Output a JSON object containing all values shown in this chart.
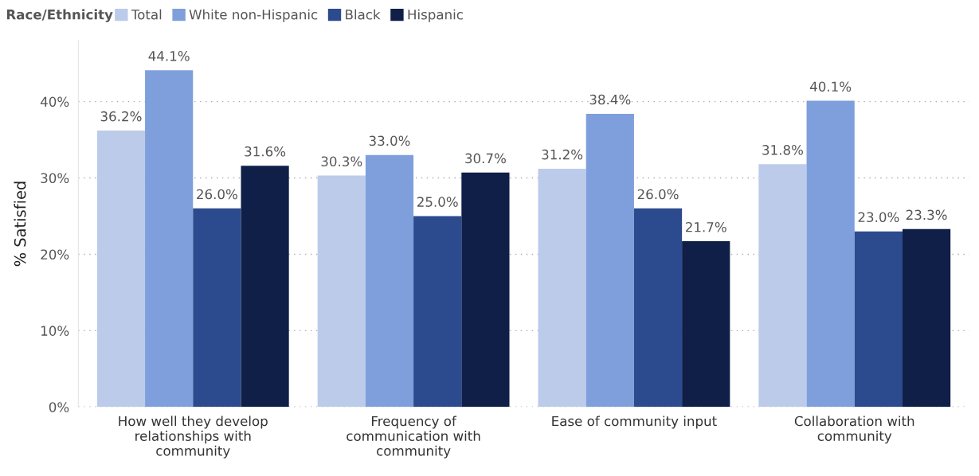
{
  "chart_data": {
    "type": "bar",
    "ylabel": "% Satisfied",
    "legend_title": "Race/Ethnicity",
    "legend": "top left",
    "categories": [
      "How well they develop\nrelationships with\ncommunity",
      "Frequency of\ncommunication with\ncommunity",
      "Ease of community input",
      "Collaboration with\ncommunity"
    ],
    "series": [
      {
        "name": "Total",
        "color": "#bccbea",
        "values": [
          36.2,
          30.3,
          31.2,
          31.8
        ],
        "value_labels": [
          "36.2%",
          "30.3%",
          "31.2%",
          "31.8%"
        ]
      },
      {
        "name": "White non-Hispanic",
        "color": "#7f9fdc",
        "values": [
          44.1,
          33.0,
          38.4,
          40.1
        ],
        "value_labels": [
          "44.1%",
          "33.0%",
          "38.4%",
          "40.1%"
        ]
      },
      {
        "name": "Black",
        "color": "#2c4a8e",
        "values": [
          26.0,
          25.0,
          26.0,
          23.0
        ],
        "value_labels": [
          "26.0%",
          "25.0%",
          "26.0%",
          "23.0%"
        ]
      },
      {
        "name": "Hispanic",
        "color": "#0f1f47",
        "values": [
          31.6,
          30.7,
          21.7,
          23.3
        ],
        "value_labels": [
          "31.6%",
          "30.7%",
          "21.7%",
          "23.3%"
        ]
      }
    ],
    "yticks": [
      {
        "value": 0,
        "label": "0%"
      },
      {
        "value": 10,
        "label": "10%"
      },
      {
        "value": 20,
        "label": "20%"
      },
      {
        "value": 30,
        "label": "30%"
      },
      {
        "value": 40,
        "label": "40%"
      }
    ],
    "ylim": [
      0,
      48
    ],
    "grid": "y"
  }
}
